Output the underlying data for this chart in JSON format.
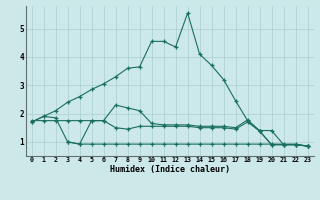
{
  "xlabel": "Humidex (Indice chaleur)",
  "background_color": "#cce8e8",
  "grid_color": "#aacfcf",
  "line_color": "#1a6e5e",
  "xlim": [
    -0.5,
    23.5
  ],
  "ylim": [
    0.5,
    5.8
  ],
  "yticks": [
    1,
    2,
    3,
    4,
    5
  ],
  "xticks": [
    0,
    1,
    2,
    3,
    4,
    5,
    6,
    7,
    8,
    9,
    10,
    11,
    12,
    13,
    14,
    15,
    16,
    17,
    18,
    19,
    20,
    21,
    22,
    23
  ],
  "curve_main_y": [
    1.7,
    1.9,
    2.1,
    2.4,
    2.6,
    2.85,
    3.05,
    3.3,
    3.6,
    3.65,
    4.55,
    4.55,
    4.35,
    5.55,
    4.1,
    3.7,
    3.2,
    2.45,
    1.75,
    1.4,
    1.4,
    0.9,
    0.9,
    0.85
  ],
  "curve_jagged_y": [
    1.7,
    1.9,
    1.85,
    1.0,
    0.92,
    1.75,
    1.75,
    2.3,
    2.2,
    2.1,
    1.65,
    1.6,
    1.6,
    1.6,
    1.55,
    1.55,
    1.55,
    1.5,
    1.78,
    1.38,
    0.9,
    0.9,
    0.9,
    0.85
  ],
  "curve_mid_y": [
    1.75,
    1.75,
    1.75,
    1.75,
    1.75,
    1.75,
    1.75,
    1.5,
    1.45,
    1.55,
    1.55,
    1.55,
    1.55,
    1.55,
    1.5,
    1.5,
    1.5,
    1.45,
    1.7,
    1.38,
    0.9,
    0.9,
    0.9,
    0.85
  ],
  "curve_flat_x": [
    3,
    4,
    5,
    6,
    7,
    8,
    9,
    10,
    11,
    12,
    13,
    14,
    15,
    16,
    17,
    18,
    19,
    20,
    21,
    22,
    23
  ],
  "curve_flat_y": [
    1.0,
    0.92,
    0.92,
    0.92,
    0.92,
    0.92,
    0.92,
    0.92,
    0.92,
    0.92,
    0.92,
    0.92,
    0.92,
    0.92,
    0.92,
    0.92,
    0.92,
    0.92,
    0.92,
    0.92,
    0.85
  ]
}
